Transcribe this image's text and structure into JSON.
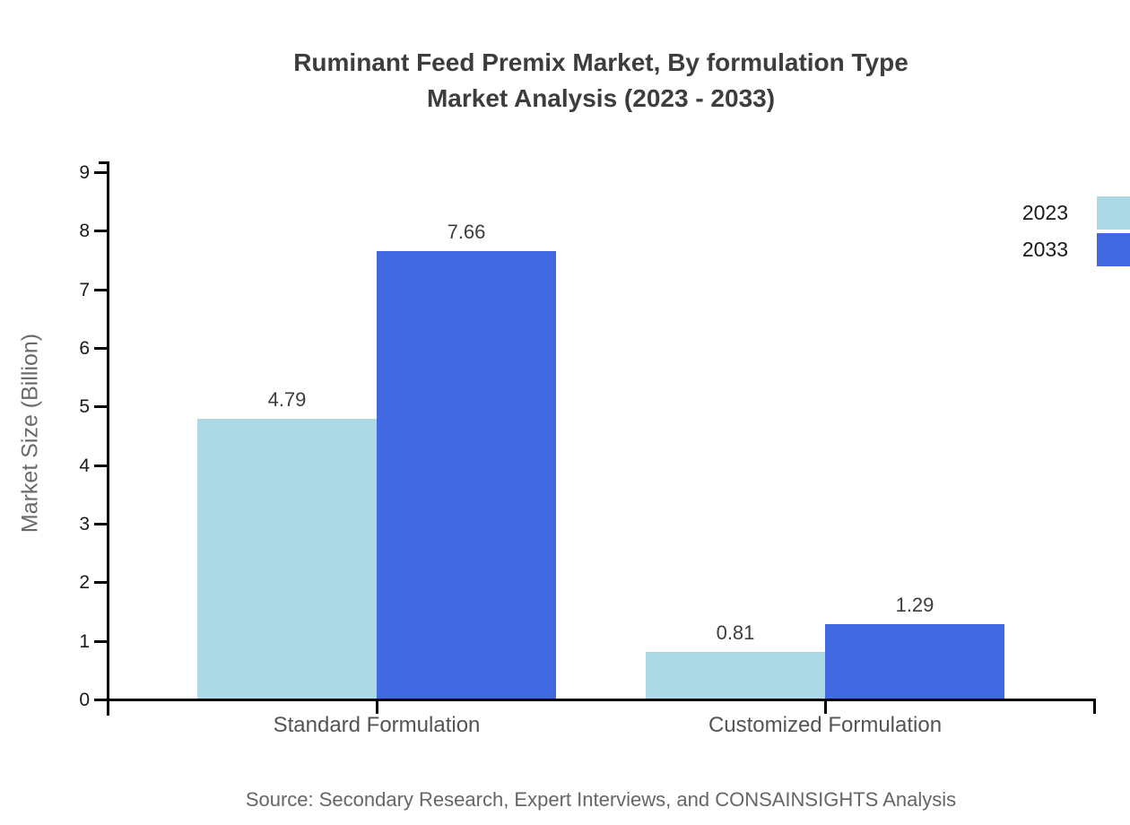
{
  "title": {
    "line1": "Ruminant Feed Premix Market, By formulation Type",
    "line2": "Market Analysis (2023 - 2033)"
  },
  "source": "Source: Secondary Research, Expert Interviews, and CONSAINSIGHTS Analysis",
  "colors": {
    "series_2023": "#ADD8E6",
    "series_2033": "#4169E1",
    "axis": "#000000",
    "title_text": "#3d3d3d",
    "muted_text": "#6b6b6b"
  },
  "chart_data": {
    "type": "bar",
    "title": "Ruminant Feed Premix Market, By formulation Type Market Analysis (2023 - 2033)",
    "categories": [
      "Standard Formulation",
      "Customized Formulation"
    ],
    "series": [
      {
        "name": "2023",
        "color": "#ADD8E6",
        "values": [
          4.79,
          0.81
        ]
      },
      {
        "name": "2033",
        "color": "#4169E1",
        "values": [
          7.66,
          1.29
        ]
      }
    ],
    "xlabel": "",
    "ylabel": "Market Size (Billion)",
    "ylim": [
      0,
      9
    ],
    "yticks": [
      0,
      1,
      2,
      3,
      4,
      5,
      6,
      7,
      8,
      9
    ],
    "grid": false,
    "legend_position": "top-right",
    "value_labels": [
      4.79,
      7.66,
      0.81,
      1.29
    ]
  }
}
